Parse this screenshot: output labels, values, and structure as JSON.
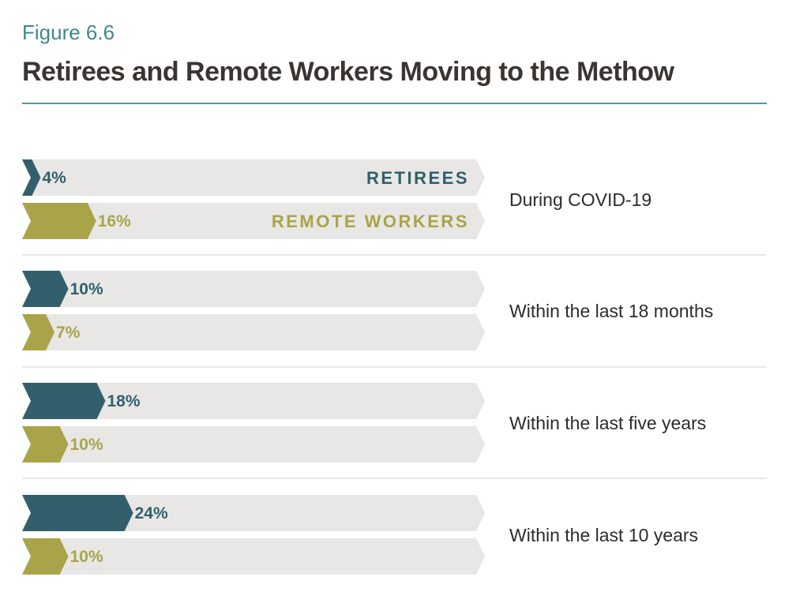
{
  "figure_label": "Figure 6.6",
  "title": "Retirees and Remote Workers Moving to the Methow",
  "colors": {
    "retirees": "#325f6b",
    "remote_workers": "#a9a449",
    "track": "#e8e7e5",
    "accent": "#4d9a9a",
    "divider": "#d9d9d9",
    "text": "#2f2b28"
  },
  "chart_data": {
    "type": "bar",
    "orientation": "horizontal",
    "categories": [
      "During COVID-19",
      "Within the last 18 months",
      "Within the last five years",
      "Within the last 10 years"
    ],
    "series": [
      {
        "name": "RETIREES",
        "values": [
          4,
          10,
          18,
          24
        ]
      },
      {
        "name": "REMOTE WORKERS",
        "values": [
          16,
          7,
          10,
          10
        ]
      }
    ],
    "value_labels": [
      [
        "4%",
        "10%",
        "18%",
        "24%"
      ],
      [
        "16%",
        "7%",
        "10%",
        "10%"
      ]
    ],
    "unit": "%",
    "xlim": [
      0,
      100
    ],
    "legend_placement": "inline, first group, right end of bars",
    "grid": false
  }
}
